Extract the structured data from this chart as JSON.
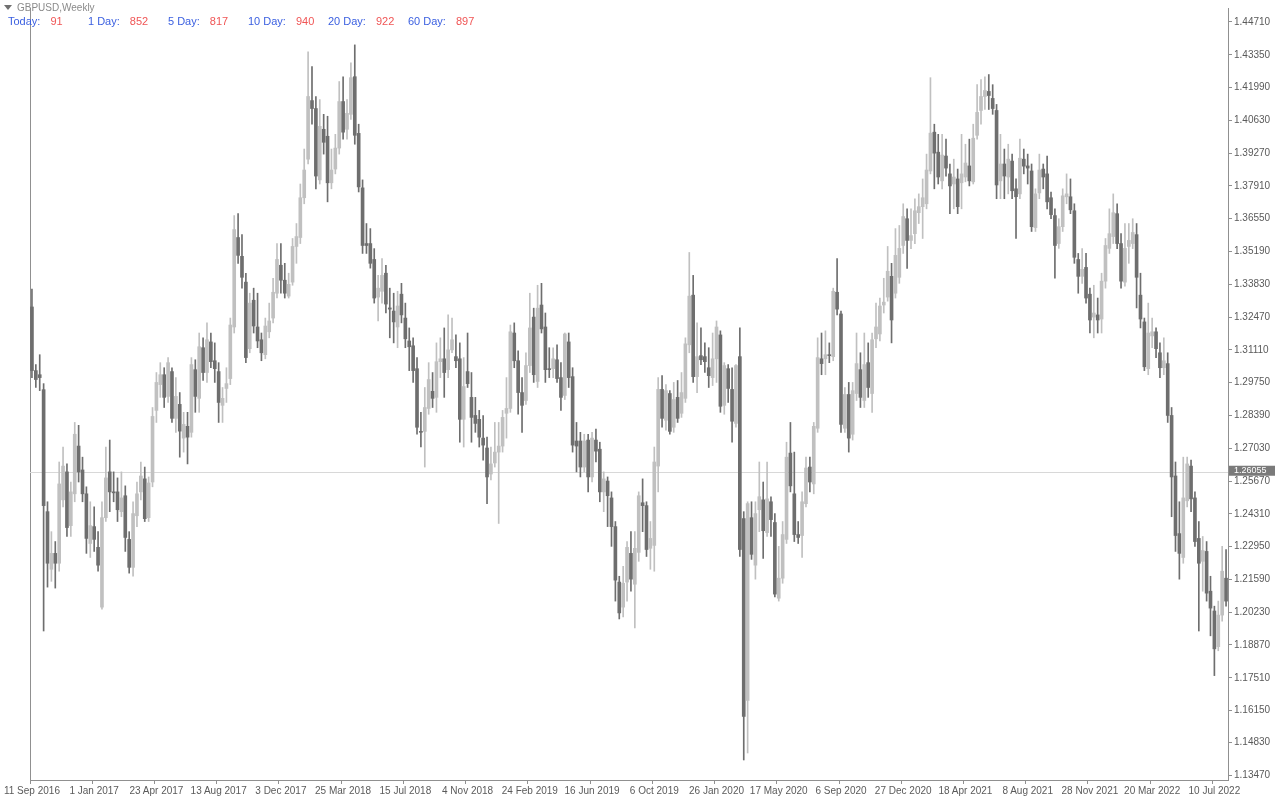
{
  "chart_data": {
    "type": "candlestick",
    "title": "GBPUSD,Weekly",
    "annotations": [
      "Today:",
      "91",
      "1 Day:",
      "852",
      "5 Day:",
      "817",
      "10 Day:",
      "940",
      "20 Day:",
      "922",
      "60 Day:",
      "897"
    ],
    "categories": [
      "11 Sep 2016",
      null,
      null,
      null,
      null,
      null,
      null,
      null,
      null,
      null,
      null,
      null,
      null,
      null,
      null,
      null,
      "1 Jan 2017",
      null,
      null,
      null,
      null,
      null,
      null,
      null,
      null,
      null,
      null,
      null,
      null,
      null,
      null,
      null,
      "23 Apr 2017",
      null,
      null,
      null,
      null,
      null,
      null,
      null,
      null,
      null,
      null,
      null,
      null,
      null,
      null,
      null,
      "13 Aug 2017",
      null,
      null,
      null,
      null,
      null,
      null,
      null,
      null,
      null,
      null,
      null,
      null,
      null,
      null,
      null,
      "3 Dec 2017",
      null,
      null,
      null,
      null,
      null,
      null,
      null,
      null,
      null,
      null,
      null,
      null,
      null,
      null,
      null,
      "25 Mar 2018",
      null,
      null,
      null,
      null,
      null,
      null,
      null,
      null,
      null,
      null,
      null,
      null,
      null,
      null,
      null,
      "15 Jul 2018",
      null,
      null,
      null,
      null,
      null,
      null,
      null,
      null,
      null,
      null,
      null,
      null,
      null,
      null,
      null,
      "4 Nov 2018",
      null,
      null,
      null,
      null,
      null,
      null,
      null,
      null,
      null,
      null,
      null,
      null,
      null,
      null,
      null,
      "24 Feb 2019",
      null,
      null,
      null,
      null,
      null,
      null,
      null,
      null,
      null,
      null,
      null,
      null,
      null,
      null,
      null,
      "16 Jun 2019",
      null,
      null,
      null,
      null,
      null,
      null,
      null,
      null,
      null,
      null,
      null,
      null,
      null,
      null,
      null,
      "6 Oct 2019",
      null,
      null,
      null,
      null,
      null,
      null,
      null,
      null,
      null,
      null,
      null,
      null,
      null,
      null,
      null,
      "26 Jan 2020",
      null,
      null,
      null,
      null,
      null,
      null,
      null,
      null,
      null,
      null,
      null,
      null,
      null,
      null,
      null,
      "17 May 2020",
      null,
      null,
      null,
      null,
      null,
      null,
      null,
      null,
      null,
      null,
      null,
      null,
      null,
      null,
      null,
      "6 Sep 2020",
      null,
      null,
      null,
      null,
      null,
      null,
      null,
      null,
      null,
      null,
      null,
      null,
      null,
      null,
      null,
      "27 Dec 2020",
      null,
      null,
      null,
      null,
      null,
      null,
      null,
      null,
      null,
      null,
      null,
      null,
      null,
      null,
      null,
      "18 Apr 2021",
      null,
      null,
      null,
      null,
      null,
      null,
      null,
      null,
      null,
      null,
      null,
      null,
      null,
      null,
      null,
      "8 Aug 2021",
      null,
      null,
      null,
      null,
      null,
      null,
      null,
      null,
      null,
      null,
      null,
      null,
      null,
      null,
      null,
      "28 Nov 2021",
      null,
      null,
      null,
      null,
      null,
      null,
      null,
      null,
      null,
      null,
      null,
      null,
      null,
      null,
      null,
      "20 Mar 2022",
      null,
      null,
      null,
      null,
      null,
      null,
      null,
      null,
      null,
      null,
      null,
      null,
      null,
      null,
      null,
      "10 Jul 2022",
      null,
      null,
      null
    ],
    "ohlc": [
      [
        1.3289,
        1.3363,
        1.2996,
        1.3025
      ],
      [
        1.3025,
        1.305,
        1.2955,
        1.2988
      ],
      [
        1.3008,
        1.3091,
        1.2942,
        1.2996
      ],
      [
        1.2946,
        1.2971,
        1.1945,
        1.2465
      ],
      [
        1.244,
        1.2481,
        1.2127,
        1.2226
      ],
      [
        1.2201,
        1.2357,
        1.2151,
        1.2267
      ],
      [
        1.2267,
        1.2316,
        1.2123,
        1.2226
      ],
      [
        1.2226,
        1.2646,
        1.2193,
        1.2555
      ],
      [
        1.2489,
        1.2708,
        1.246,
        1.2629
      ],
      [
        1.2605,
        1.2638,
        1.2337,
        1.2374
      ],
      [
        1.2382,
        1.2563,
        1.2337,
        1.2522
      ],
      [
        1.2514,
        1.281,
        1.2481,
        1.2761
      ],
      [
        1.2712,
        1.2798,
        1.2563,
        1.2605
      ],
      [
        1.2613,
        1.2666,
        1.2481,
        1.2514
      ],
      [
        1.2514,
        1.2543,
        1.2267,
        1.2329
      ],
      [
        1.2308,
        1.2481,
        1.225,
        1.2382
      ],
      [
        1.2378,
        1.246,
        1.2275,
        1.2325
      ],
      [
        1.2292,
        1.2357,
        1.2193,
        1.2218
      ],
      [
        1.2044,
        1.2481,
        1.2036,
        1.2415
      ],
      [
        1.2415,
        1.2708,
        1.2399,
        1.258
      ],
      [
        1.2605,
        1.2737,
        1.244,
        1.2522
      ],
      [
        1.2522,
        1.2605,
        1.2481,
        1.2518
      ],
      [
        1.2522,
        1.258,
        1.2399,
        1.2448
      ],
      [
        1.244,
        1.2605,
        1.2419,
        1.2497
      ],
      [
        1.2506,
        1.2547,
        1.2275,
        1.2333
      ],
      [
        1.2325,
        1.2357,
        1.2185,
        1.2209
      ],
      [
        1.2209,
        1.2481,
        1.2172,
        1.2432
      ],
      [
        1.2423,
        1.2563,
        1.2378,
        1.2514
      ],
      [
        1.2522,
        1.2646,
        1.2489,
        1.2588
      ],
      [
        1.2576,
        1.2625,
        1.2399,
        1.2411
      ],
      [
        1.2415,
        1.2584,
        1.2399,
        1.2559
      ],
      [
        1.2563,
        1.2872,
        1.2543,
        1.2835
      ],
      [
        1.286,
        1.3017,
        1.281,
        1.2976
      ],
      [
        1.2967,
        1.3058,
        1.2914,
        1.3008
      ],
      [
        1.3008,
        1.3037,
        1.2872,
        1.2914
      ],
      [
        1.2918,
        1.3079,
        1.2893,
        1.3058
      ],
      [
        1.3021,
        1.3037,
        1.281,
        1.2827
      ],
      [
        1.2827,
        1.2996,
        1.2769,
        1.2918
      ],
      [
        1.2885,
        1.2934,
        1.2666,
        1.2774
      ],
      [
        1.2745,
        1.2852,
        1.2687,
        1.2802
      ],
      [
        1.2794,
        1.2852,
        1.2638,
        1.2749
      ],
      [
        1.2769,
        1.3079,
        1.2749,
        1.305
      ],
      [
        1.3029,
        1.307,
        1.2852,
        1.2918
      ],
      [
        1.291,
        1.3181,
        1.2852,
        1.3124
      ],
      [
        1.312,
        1.3161,
        1.2984,
        1.3017
      ],
      [
        1.3017,
        1.3223,
        1.2976,
        1.3153
      ],
      [
        1.3144,
        1.3181,
        1.3037,
        1.3062
      ],
      [
        1.3066,
        1.314,
        1.2976,
        1.3033
      ],
      [
        1.3021,
        1.3058,
        1.281,
        1.2893
      ],
      [
        1.2881,
        1.2955,
        1.281,
        1.291
      ],
      [
        1.2951,
        1.3037,
        1.2893,
        1.2971
      ],
      [
        1.2992,
        1.3243,
        1.2967,
        1.3214
      ],
      [
        1.3206,
        1.3668,
        1.3181,
        1.361
      ],
      [
        1.3577,
        1.3676,
        1.347,
        1.3503
      ],
      [
        1.3499,
        1.3589,
        1.3367,
        1.3412
      ],
      [
        1.3392,
        1.3429,
        1.3058,
        1.3079
      ],
      [
        1.3116,
        1.3346,
        1.3099,
        1.3305
      ],
      [
        1.3317,
        1.3367,
        1.3181,
        1.321
      ],
      [
        1.3206,
        1.3346,
        1.312,
        1.3148
      ],
      [
        1.3153,
        1.3181,
        1.3066,
        1.3099
      ],
      [
        1.3091,
        1.3243,
        1.3074,
        1.321
      ],
      [
        1.3186,
        1.3305,
        1.3161,
        1.3231
      ],
      [
        1.3243,
        1.3408,
        1.3223,
        1.335
      ],
      [
        1.3346,
        1.3552,
        1.3326,
        1.3486
      ],
      [
        1.3462,
        1.3552,
        1.3346,
        1.34
      ],
      [
        1.34,
        1.347,
        1.3326,
        1.3346
      ],
      [
        1.3334,
        1.3429,
        1.3326,
        1.3383
      ],
      [
        1.3392,
        1.3573,
        1.3379,
        1.354
      ],
      [
        1.354,
        1.3635,
        1.347,
        1.3581
      ],
      [
        1.3577,
        1.3799,
        1.3552,
        1.3742
      ],
      [
        1.3742,
        1.3944,
        1.3717,
        1.3857
      ],
      [
        1.3902,
        1.4347,
        1.3882,
        1.4162
      ],
      [
        1.4145,
        1.4286,
        1.4047,
        1.4112
      ],
      [
        1.4112,
        1.4162,
        1.3779,
        1.3832
      ],
      [
        1.3816,
        1.4149,
        1.3799,
        1.4038
      ],
      [
        1.4026,
        1.4088,
        1.3923,
        1.3972
      ],
      [
        1.3997,
        1.408,
        1.3725,
        1.3804
      ],
      [
        1.3804,
        1.3944,
        1.3779,
        1.3857
      ],
      [
        1.3861,
        1.4005,
        1.3841,
        1.3948
      ],
      [
        1.3948,
        1.4224,
        1.3923,
        1.4141
      ],
      [
        1.4141,
        1.4244,
        1.3985,
        1.4014
      ],
      [
        1.4026,
        1.4149,
        1.3985,
        1.4092
      ],
      [
        1.4088,
        1.4302,
        1.4067,
        1.424
      ],
      [
        1.4244,
        1.4376,
        1.3964,
        1.4001
      ],
      [
        1.4009,
        1.4047,
        1.3766,
        1.3787
      ],
      [
        1.3783,
        1.3816,
        1.3511,
        1.3544
      ],
      [
        1.3552,
        1.3635,
        1.3511,
        1.3544
      ],
      [
        1.3552,
        1.3614,
        1.345,
        1.347
      ],
      [
        1.3486,
        1.3531,
        1.3305,
        1.3326
      ],
      [
        1.333,
        1.342,
        1.3231,
        1.3367
      ],
      [
        1.3354,
        1.349,
        1.3305,
        1.342
      ],
      [
        1.3429,
        1.3462,
        1.3264,
        1.3301
      ],
      [
        1.3285,
        1.3367,
        1.3161,
        1.328
      ],
      [
        1.3272,
        1.3346,
        1.314,
        1.3227
      ],
      [
        1.3206,
        1.3354,
        1.312,
        1.3293
      ],
      [
        1.3342,
        1.3387,
        1.3223,
        1.3256
      ],
      [
        1.3243,
        1.3305,
        1.312,
        1.3157
      ],
      [
        1.3148,
        1.3202,
        1.3025,
        1.3124
      ],
      [
        1.3128,
        1.3161,
        1.2976,
        1.3025
      ],
      [
        1.3033,
        1.3079,
        1.2761,
        1.279
      ],
      [
        1.2773,
        1.2852,
        1.2708,
        1.2769
      ],
      [
        1.2773,
        1.2955,
        1.2625,
        1.2872
      ],
      [
        1.2868,
        1.3058,
        1.2844,
        1.2988
      ],
      [
        1.2939,
        1.3017,
        1.2872,
        1.291
      ],
      [
        1.2914,
        1.314,
        1.2852,
        1.3062
      ],
      [
        1.3062,
        1.3161,
        1.2996,
        1.3074
      ],
      [
        1.3074,
        1.3202,
        1.2914,
        1.3017
      ],
      [
        1.3029,
        1.3256,
        1.2996,
        1.3111
      ],
      [
        1.3111,
        1.3243,
        1.3099,
        1.3153
      ],
      [
        1.3083,
        1.3173,
        1.3037,
        1.3066
      ],
      [
        1.3074,
        1.314,
        1.2728,
        1.2823
      ],
      [
        1.2823,
        1.3079,
        1.2708,
        1.2959
      ],
      [
        1.3021,
        1.3181,
        1.2955,
        1.2971
      ],
      [
        1.2914,
        1.3017,
        1.2728,
        1.2831
      ],
      [
        1.2839,
        1.2914,
        1.2769,
        1.2806
      ],
      [
        1.2823,
        1.286,
        1.2708,
        1.2749
      ],
      [
        1.2745,
        1.2839,
        1.2654,
        1.2716
      ],
      [
        1.2704,
        1.2749,
        1.2473,
        1.2584
      ],
      [
        1.2596,
        1.2708,
        1.2572,
        1.2638
      ],
      [
        1.2642,
        1.281,
        1.2625,
        1.2687
      ],
      [
        1.2687,
        1.281,
        1.2391,
        1.2712
      ],
      [
        1.2712,
        1.286,
        1.2687,
        1.2831
      ],
      [
        1.2848,
        1.2996,
        1.2745,
        1.2868
      ],
      [
        1.2868,
        1.3214,
        1.2852,
        1.3186
      ],
      [
        1.3181,
        1.3223,
        1.3037,
        1.3066
      ],
      [
        1.3066,
        1.3107,
        1.2844,
        1.2934
      ],
      [
        1.2934,
        1.2996,
        1.2769,
        1.2881
      ],
      [
        1.2901,
        1.3099,
        1.2885,
        1.3046
      ],
      [
        1.3046,
        1.3346,
        1.3017,
        1.3202
      ],
      [
        1.3247,
        1.3284,
        1.2976,
        1.3008
      ],
      [
        1.298,
        1.3379,
        1.2955,
        1.3284
      ],
      [
        1.3297,
        1.3387,
        1.3181,
        1.3198
      ],
      [
        1.3206,
        1.3264,
        1.2976,
        1.3029
      ],
      [
        1.3033,
        1.312,
        1.2996,
        1.3029
      ],
      [
        1.3033,
        1.312,
        1.2996,
        1.3074
      ],
      [
        1.307,
        1.3132,
        1.2976,
        1.2992
      ],
      [
        1.2996,
        1.3058,
        1.286,
        1.2914
      ],
      [
        1.2922,
        1.3181,
        1.2905,
        1.3177
      ],
      [
        1.3144,
        1.3181,
        1.2955,
        1.2996
      ],
      [
        1.3,
        1.3037,
        1.2687,
        1.2716
      ],
      [
        1.2733,
        1.281,
        1.2605,
        1.2712
      ],
      [
        1.2733,
        1.2769,
        1.2584,
        1.2625
      ],
      [
        1.2625,
        1.2761,
        1.2605,
        1.2733
      ],
      [
        1.2737,
        1.2761,
        1.2522,
        1.2584
      ],
      [
        1.2584,
        1.2769,
        1.2563,
        1.2745
      ],
      [
        1.2737,
        1.2782,
        1.2646,
        1.2691
      ],
      [
        1.2699,
        1.2728,
        1.2481,
        1.2522
      ],
      [
        1.2522,
        1.2605,
        1.244,
        1.2576
      ],
      [
        1.2567,
        1.2584,
        1.2378,
        1.2506
      ],
      [
        1.2497,
        1.2522,
        1.2296,
        1.2378
      ],
      [
        1.2378,
        1.2399,
        1.2069,
        1.2156
      ],
      [
        1.2148,
        1.2172,
        1.1995,
        1.202
      ],
      [
        1.2044,
        1.2213,
        1.2003,
        1.2143
      ],
      [
        1.2148,
        1.2316,
        1.2069,
        1.2292
      ],
      [
        1.2267,
        1.2357,
        1.211,
        1.216
      ],
      [
        1.2139,
        1.2357,
        1.1958,
        1.2288
      ],
      [
        1.2271,
        1.2522,
        1.2234,
        1.2506
      ],
      [
        1.2477,
        1.2576,
        1.2357,
        1.2465
      ],
      [
        1.2465,
        1.2481,
        1.2254,
        1.2283
      ],
      [
        1.2288,
        1.2399,
        1.2201,
        1.2329
      ],
      [
        1.23,
        1.2708,
        1.2193,
        1.2646
      ],
      [
        1.2629,
        1.2996,
        1.2522,
        1.2947
      ],
      [
        1.2947,
        1.3004,
        1.279,
        1.2827
      ],
      [
        1.2819,
        1.2967,
        1.2778,
        1.2942
      ],
      [
        1.293,
        1.2942,
        1.2761,
        1.2773
      ],
      [
        1.279,
        1.2976,
        1.2769,
        1.2905
      ],
      [
        1.2914,
        1.2984,
        1.281,
        1.2827
      ],
      [
        1.2848,
        1.3017,
        1.2831,
        1.2934
      ],
      [
        1.291,
        1.3161,
        1.2893,
        1.3136
      ],
      [
        1.3132,
        1.3515,
        1.3099,
        1.3334
      ],
      [
        1.3338,
        1.342,
        1.2976,
        1.3
      ],
      [
        1.3,
        1.3223,
        1.2934,
        1.3083
      ],
      [
        1.3087,
        1.3202,
        1.305,
        1.307
      ],
      [
        1.3083,
        1.314,
        1.3017,
        1.3062
      ],
      [
        1.3037,
        1.312,
        1.2955,
        1.3004
      ],
      [
        1.2996,
        1.3181,
        1.2963,
        1.3074
      ],
      [
        1.3074,
        1.3231,
        1.2976,
        1.3206
      ],
      [
        1.3173,
        1.319,
        1.2852,
        1.2877
      ],
      [
        1.2881,
        1.3058,
        1.2844,
        1.3046
      ],
      [
        1.3033,
        1.305,
        1.2893,
        1.2951
      ],
      [
        1.2947,
        1.3037,
        1.2728,
        1.2815
      ],
      [
        1.2806,
        1.305,
        1.279,
        1.3046
      ],
      [
        1.3083,
        1.3202,
        1.2254,
        1.2283
      ],
      [
        1.2411,
        1.244,
        1.141,
        1.1591
      ],
      [
        1.1657,
        1.2481,
        1.1439,
        1.2473
      ],
      [
        1.2415,
        1.2481,
        1.2242,
        1.2263
      ],
      [
        1.2218,
        1.2481,
        1.216,
        1.2432
      ],
      [
        1.2448,
        1.2646,
        1.2357,
        1.2502
      ],
      [
        1.2489,
        1.2563,
        1.2246,
        1.2361
      ],
      [
        1.2353,
        1.2646,
        1.2337,
        1.2493
      ],
      [
        1.2481,
        1.2502,
        1.2337,
        1.2407
      ],
      [
        1.2395,
        1.2432,
        1.2086,
        1.2098
      ],
      [
        1.2081,
        1.2296,
        1.2069,
        1.2164
      ],
      [
        1.2164,
        1.2399,
        1.2143,
        1.2345
      ],
      [
        1.2325,
        1.2728,
        1.2308,
        1.2666
      ],
      [
        1.2683,
        1.281,
        1.2522,
        1.2547
      ],
      [
        1.2514,
        1.2687,
        1.2316,
        1.2345
      ],
      [
        1.2345,
        1.2399,
        1.2308,
        1.2333
      ],
      [
        1.2341,
        1.2522,
        1.225,
        1.2481
      ],
      [
        1.2473,
        1.2666,
        1.246,
        1.2621
      ],
      [
        1.2625,
        1.2666,
        1.2522,
        1.2563
      ],
      [
        1.2555,
        1.281,
        1.2514,
        1.2794
      ],
      [
        1.2786,
        1.3161,
        1.2769,
        1.3079
      ],
      [
        1.3074,
        1.3181,
        1.3008,
        1.3054
      ],
      [
        1.3074,
        1.319,
        1.3008,
        1.3091
      ],
      [
        1.3091,
        1.314,
        1.3058,
        1.3087
      ],
      [
        1.3083,
        1.3367,
        1.3066,
        1.3354
      ],
      [
        1.335,
        1.349,
        1.3256,
        1.328
      ],
      [
        1.326,
        1.3272,
        1.2769,
        1.2802
      ],
      [
        1.2786,
        1.2955,
        1.2769,
        1.2926
      ],
      [
        1.2926,
        1.2976,
        1.2687,
        1.2745
      ],
      [
        1.2761,
        1.2976,
        1.2737,
        1.2942
      ],
      [
        1.293,
        1.3181,
        1.2901,
        1.3054
      ],
      [
        1.3029,
        1.3099,
        1.2872,
        1.2914
      ],
      [
        1.2901,
        1.3181,
        1.2872,
        1.305
      ],
      [
        1.3058,
        1.314,
        1.2914,
        1.2955
      ],
      [
        1.293,
        1.3181,
        1.2852,
        1.3153
      ],
      [
        1.3157,
        1.3305,
        1.312,
        1.3206
      ],
      [
        1.3177,
        1.3326,
        1.3148,
        1.3293
      ],
      [
        1.3297,
        1.3408,
        1.3264,
        1.3309
      ],
      [
        1.333,
        1.354,
        1.3313,
        1.3437
      ],
      [
        1.3416,
        1.347,
        1.314,
        1.3235
      ],
      [
        1.3346,
        1.3614,
        1.3326,
        1.3503
      ],
      [
        1.3412,
        1.3627,
        1.3387,
        1.3532
      ],
      [
        1.3544,
        1.3717,
        1.3511,
        1.3664
      ],
      [
        1.3655,
        1.3696,
        1.3449,
        1.3565
      ],
      [
        1.3565,
        1.3696,
        1.3531,
        1.3585
      ],
      [
        1.3593,
        1.3738,
        1.3552,
        1.3688
      ],
      [
        1.368,
        1.3758,
        1.3635,
        1.3705
      ],
      [
        1.3705,
        1.382,
        1.3573,
        1.3742
      ],
      [
        1.3717,
        1.3923,
        1.3696,
        1.3857
      ],
      [
        1.3853,
        1.424,
        1.3841,
        1.401
      ],
      [
        1.4014,
        1.4047,
        1.3779,
        1.3927
      ],
      [
        1.3931,
        1.4005,
        1.3799,
        1.3828
      ],
      [
        1.3812,
        1.4005,
        1.3779,
        1.3919
      ],
      [
        1.3915,
        1.3985,
        1.3832,
        1.3865
      ],
      [
        1.3841,
        1.3882,
        1.3676,
        1.3791
      ],
      [
        1.3799,
        1.3902,
        1.3696,
        1.3828
      ],
      [
        1.382,
        1.3861,
        1.3676,
        1.3705
      ],
      [
        1.3804,
        1.4005,
        1.3696,
        1.3841
      ],
      [
        1.3828,
        1.3964,
        1.3808,
        1.3886
      ],
      [
        1.3874,
        1.3985,
        1.3791,
        1.3812
      ],
      [
        1.3808,
        1.4047,
        1.3799,
        1.3989
      ],
      [
        1.4001,
        1.4211,
        1.3985,
        1.4096
      ],
      [
        1.4104,
        1.4232,
        1.4047,
        1.4162
      ],
      [
        1.4162,
        1.4244,
        1.4108,
        1.4187
      ],
      [
        1.4183,
        1.4253,
        1.4108,
        1.4166
      ],
      [
        1.4154,
        1.4211,
        1.4088,
        1.4112
      ],
      [
        1.4104,
        1.4129,
        1.3738,
        1.3795
      ],
      [
        1.3812,
        1.4005,
        1.3738,
        1.3882
      ],
      [
        1.3882,
        1.3944,
        1.3738,
        1.3832
      ],
      [
        1.3828,
        1.3964,
        1.3758,
        1.3902
      ],
      [
        1.3894,
        1.3923,
        1.3738,
        1.3771
      ],
      [
        1.3779,
        1.382,
        1.3573,
        1.3746
      ],
      [
        1.3758,
        1.3985,
        1.3738,
        1.3906
      ],
      [
        1.3902,
        1.3944,
        1.3841,
        1.3873
      ],
      [
        1.3874,
        1.3923,
        1.3799,
        1.3865
      ],
      [
        1.3853,
        1.3882,
        1.3602,
        1.3622
      ],
      [
        1.3618,
        1.3779,
        1.3602,
        1.3758
      ],
      [
        1.3762,
        1.3923,
        1.3738,
        1.3857
      ],
      [
        1.3861,
        1.3882,
        1.3779,
        1.3828
      ],
      [
        1.3841,
        1.3915,
        1.3696,
        1.3725
      ],
      [
        1.3742,
        1.3766,
        1.3655,
        1.3672
      ],
      [
        1.3668,
        1.3696,
        1.3408,
        1.3544
      ],
      [
        1.3552,
        1.3655,
        1.3532,
        1.3622
      ],
      [
        1.3622,
        1.3779,
        1.3602,
        1.375
      ],
      [
        1.3746,
        1.3841,
        1.3717,
        1.3758
      ],
      [
        1.3746,
        1.382,
        1.3676,
        1.3692
      ],
      [
        1.3688,
        1.3717,
        1.347,
        1.3495
      ],
      [
        1.3486,
        1.3511,
        1.3346,
        1.3416
      ],
      [
        1.3416,
        1.3531,
        1.3387,
        1.3445
      ],
      [
        1.3453,
        1.3511,
        1.3305,
        1.3326
      ],
      [
        1.3342,
        1.3367,
        1.3181,
        1.3235
      ],
      [
        1.3247,
        1.3379,
        1.3161,
        1.3264
      ],
      [
        1.3256,
        1.3326,
        1.3181,
        1.3235
      ],
      [
        1.3239,
        1.3429,
        1.3181,
        1.3396
      ],
      [
        1.3396,
        1.3573,
        1.3367,
        1.3544
      ],
      [
        1.3532,
        1.3696,
        1.3511,
        1.3593
      ],
      [
        1.3581,
        1.3758,
        1.3552,
        1.368
      ],
      [
        1.3676,
        1.3717,
        1.3531,
        1.3552
      ],
      [
        1.3552,
        1.3593,
        1.3367,
        1.3396
      ],
      [
        1.3392,
        1.3635,
        1.3375,
        1.3532
      ],
      [
        1.354,
        1.3635,
        1.347,
        1.3565
      ],
      [
        1.3552,
        1.3655,
        1.3531,
        1.3598
      ],
      [
        1.3589,
        1.3635,
        1.3285,
        1.3412
      ],
      [
        1.3338,
        1.3429,
        1.3202,
        1.3239
      ],
      [
        1.3227,
        1.3243,
        1.3025,
        1.3041
      ],
      [
        1.3033,
        1.3305,
        1.3008,
        1.3181
      ],
      [
        1.3169,
        1.3243,
        1.312,
        1.3186
      ],
      [
        1.3186,
        1.3202,
        1.3079,
        1.3116
      ],
      [
        1.3099,
        1.314,
        1.2996,
        1.3037
      ],
      [
        1.3037,
        1.3161,
        1.3008,
        1.3066
      ],
      [
        1.3054,
        1.3099,
        1.281,
        1.2839
      ],
      [
        1.2839,
        1.2872,
        1.2419,
        1.2584
      ],
      [
        1.2588,
        1.2646,
        1.2275,
        1.2341
      ],
      [
        1.2349,
        1.2481,
        1.216,
        1.2267
      ],
      [
        1.225,
        1.2666,
        1.2226,
        1.2497
      ],
      [
        1.2485,
        1.2666,
        1.246,
        1.2638
      ],
      [
        1.2629,
        1.2654,
        1.244,
        1.2493
      ],
      [
        1.2497,
        1.2522,
        1.2296,
        1.2316
      ],
      [
        1.2329,
        1.2399,
        1.1945,
        1.2226
      ],
      [
        1.2234,
        1.2337,
        1.211,
        1.2279
      ],
      [
        1.2275,
        1.2316,
        1.2069,
        1.2102
      ],
      [
        1.211,
        1.2172,
        1.1925,
        1.204
      ],
      [
        1.2028,
        1.2048,
        1.176,
        1.1871
      ],
      [
        1.188,
        1.2069,
        1.1863,
        1.2011
      ],
      [
        1.2011,
        1.2296,
        1.1986,
        1.2193
      ],
      [
        1.2164,
        1.2283,
        1.2048,
        1.2069
      ]
    ],
    "ylim": [
      1.1327,
      1.4529
    ],
    "yticks": [
      {
        "value": 1.4471,
        "label": "1.44710"
      },
      {
        "value": 1.4335,
        "label": "1.43350"
      },
      {
        "value": 1.4199,
        "label": "1.41990"
      },
      {
        "value": 1.4063,
        "label": "1.40630"
      },
      {
        "value": 1.3927,
        "label": "1.39270"
      },
      {
        "value": 1.3791,
        "label": "1.37910"
      },
      {
        "value": 1.3655,
        "label": "1.36550"
      },
      {
        "value": 1.3519,
        "label": "1.35190"
      },
      {
        "value": 1.3383,
        "label": "1.33830"
      },
      {
        "value": 1.3247,
        "label": "1.32470"
      },
      {
        "value": 1.3111,
        "label": "1.31110"
      },
      {
        "value": 1.2975,
        "label": "1.29750"
      },
      {
        "value": 1.2839,
        "label": "1.28390"
      },
      {
        "value": 1.2703,
        "label": "1.27030"
      },
      {
        "value": 1.2567,
        "label": "1.25670"
      },
      {
        "value": 1.2431,
        "label": "1.24310"
      },
      {
        "value": 1.2295,
        "label": "1.22950"
      },
      {
        "value": 1.2159,
        "label": "1.21590"
      },
      {
        "value": 1.2023,
        "label": "1.20230"
      },
      {
        "value": 1.1887,
        "label": "1.18870"
      },
      {
        "value": 1.1751,
        "label": "1.17510"
      },
      {
        "value": 1.1615,
        "label": "1.16150"
      },
      {
        "value": 1.1483,
        "label": "1.14830"
      },
      {
        "value": 1.1347,
        "label": "1.13470"
      }
    ],
    "ref_lines": [
      {
        "axis": "y",
        "value": 1.26055,
        "label": "1.26055",
        "color": "#d8d8d8"
      }
    ],
    "legend": false
  }
}
